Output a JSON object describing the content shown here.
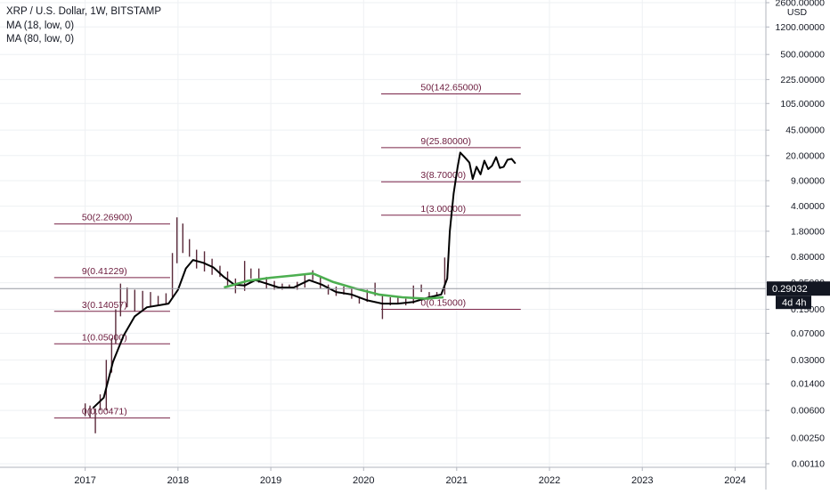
{
  "legend": {
    "symbol_line": "XRP / U.S. Dollar, 1W, BITSTAMP",
    "ma1": "MA (18, low, 0)",
    "ma2": "MA (80, low, 0)"
  },
  "axis": {
    "currency": "USD",
    "last_price": "0.29032",
    "countdown": "4d 4h"
  },
  "colors": {
    "background": "#ffffff",
    "grid": "#eef0f3",
    "fib_line": "#7a2448",
    "fib_text": "#6b1a3c",
    "candles": "#5a2a3a",
    "ma18": "#000000",
    "ma80": "#4caf50",
    "price_line": "#9598a1",
    "badge": "#131722"
  },
  "chart_data": {
    "type": "line",
    "y_scale": "log",
    "xlim": [
      "2016-02-01",
      "2024-05-01"
    ],
    "ylim": [
      0.0011,
      2600
    ],
    "x_ticks": [
      "2017",
      "2018",
      "2019",
      "2020",
      "2021",
      "2022",
      "2023",
      "2024"
    ],
    "y_ticks": [
      "2600.00000",
      "1200.00000",
      "500.00000",
      "225.00000",
      "105.00000",
      "45.00000",
      "20.00000",
      "9.00000",
      "4.00000",
      "1.80000",
      "0.80000",
      "0.35000",
      "0.15000",
      "0.07000",
      "0.03000",
      "0.01400",
      "0.00600",
      "0.00250",
      "0.00110"
    ],
    "fib_levels": [
      {
        "label": "0(0.00471)",
        "value": 0.00471,
        "x_start": "2016-09-01",
        "x_end": "2017-12-01"
      },
      {
        "label": "1(0.05000)",
        "value": 0.05,
        "x_start": "2016-09-01",
        "x_end": "2017-12-01"
      },
      {
        "label": "3(0.14057)",
        "value": 0.14057,
        "x_start": "2016-09-01",
        "x_end": "2017-12-01"
      },
      {
        "label": "9(0.41229)",
        "value": 0.41229,
        "x_start": "2016-09-01",
        "x_end": "2017-12-01"
      },
      {
        "label": "50(2.26900)",
        "value": 2.269,
        "x_start": "2016-09-01",
        "x_end": "2017-12-01"
      },
      {
        "label": "0(0.15000)",
        "value": 0.15,
        "x_start": "2020-03-10",
        "x_end": "2021-09-10"
      },
      {
        "label": "1(3.00000)",
        "value": 3.0,
        "x_start": "2020-03-10",
        "x_end": "2021-09-10"
      },
      {
        "label": "3(8.70000)",
        "value": 8.7,
        "x_start": "2020-03-10",
        "x_end": "2021-09-10"
      },
      {
        "label": "9(25.80000)",
        "value": 25.8,
        "x_start": "2020-03-10",
        "x_end": "2021-09-10"
      },
      {
        "label": "50(142.65000)",
        "value": 142.65,
        "x_start": "2020-03-10",
        "x_end": "2021-09-10"
      }
    ],
    "series": [
      {
        "name": "MA (18, low, 0)",
        "color": "#000000",
        "points": [
          [
            "2017-02-01",
            0.0065
          ],
          [
            "2017-03-15",
            0.009
          ],
          [
            "2017-04-20",
            0.028
          ],
          [
            "2017-06-01",
            0.065
          ],
          [
            "2017-07-15",
            0.12
          ],
          [
            "2017-09-01",
            0.16
          ],
          [
            "2017-10-15",
            0.17
          ],
          [
            "2017-11-25",
            0.18
          ],
          [
            "2018-01-01",
            0.28
          ],
          [
            "2018-02-01",
            0.55
          ],
          [
            "2018-03-01",
            0.72
          ],
          [
            "2018-04-10",
            0.66
          ],
          [
            "2018-05-20",
            0.57
          ],
          [
            "2018-07-01",
            0.42
          ],
          [
            "2018-08-10",
            0.33
          ],
          [
            "2018-09-20",
            0.32
          ],
          [
            "2018-11-01",
            0.38
          ],
          [
            "2018-12-15",
            0.34
          ],
          [
            "2019-02-01",
            0.3
          ],
          [
            "2019-04-01",
            0.3
          ],
          [
            "2019-06-01",
            0.38
          ],
          [
            "2019-07-20",
            0.33
          ],
          [
            "2019-09-15",
            0.26
          ],
          [
            "2019-11-15",
            0.24
          ],
          [
            "2020-01-15",
            0.2
          ],
          [
            "2020-03-15",
            0.18
          ],
          [
            "2020-05-15",
            0.18
          ],
          [
            "2020-07-15",
            0.19
          ],
          [
            "2020-09-15",
            0.22
          ],
          [
            "2020-11-01",
            0.24
          ],
          [
            "2020-11-25",
            0.4
          ],
          [
            "2020-12-05",
            1.8
          ],
          [
            "2020-12-20",
            6.0
          ],
          [
            "2021-01-05",
            14.0
          ],
          [
            "2021-01-15",
            22.0
          ],
          [
            "2021-02-01",
            19.0
          ],
          [
            "2021-02-20",
            16.0
          ],
          [
            "2021-03-05",
            9.5
          ],
          [
            "2021-03-20",
            14.0
          ],
          [
            "2021-04-05",
            11.0
          ],
          [
            "2021-04-20",
            17.0
          ],
          [
            "2021-05-05",
            13.0
          ],
          [
            "2021-05-20",
            14.5
          ],
          [
            "2021-06-05",
            19.0
          ],
          [
            "2021-06-20",
            13.5
          ],
          [
            "2021-07-05",
            14.0
          ],
          [
            "2021-07-20",
            17.5
          ],
          [
            "2021-08-05",
            18.0
          ],
          [
            "2021-08-20",
            15.5
          ]
        ]
      },
      {
        "name": "MA (80, low, 0)",
        "color": "#4caf50",
        "points": [
          [
            "2018-07-01",
            0.3
          ],
          [
            "2018-10-01",
            0.37
          ],
          [
            "2019-01-01",
            0.41
          ],
          [
            "2019-04-01",
            0.44
          ],
          [
            "2019-06-15",
            0.47
          ],
          [
            "2019-09-01",
            0.36
          ],
          [
            "2019-12-01",
            0.29
          ],
          [
            "2020-03-01",
            0.24
          ],
          [
            "2020-06-01",
            0.22
          ],
          [
            "2020-09-01",
            0.21
          ],
          [
            "2020-11-10",
            0.22
          ]
        ]
      }
    ],
    "candles": [
      [
        "2017-01-01",
        0.005,
        0.0075
      ],
      [
        "2017-01-20",
        0.0048,
        0.007
      ],
      [
        "2017-02-10",
        0.0029,
        0.0064
      ],
      [
        "2017-03-01",
        0.006,
        0.01
      ],
      [
        "2017-03-25",
        0.006,
        0.03
      ],
      [
        "2017-04-15",
        0.02,
        0.06
      ],
      [
        "2017-05-01",
        0.05,
        0.15
      ],
      [
        "2017-05-20",
        0.12,
        0.34
      ],
      [
        "2017-06-15",
        0.16,
        0.3
      ],
      [
        "2017-07-15",
        0.14,
        0.28
      ],
      [
        "2017-08-15",
        0.15,
        0.27
      ],
      [
        "2017-09-15",
        0.16,
        0.26
      ],
      [
        "2017-10-15",
        0.17,
        0.23
      ],
      [
        "2017-11-15",
        0.18,
        0.25
      ],
      [
        "2017-12-10",
        0.22,
        0.9
      ],
      [
        "2017-12-28",
        0.65,
        2.8
      ],
      [
        "2018-01-20",
        0.9,
        2.3
      ],
      [
        "2018-02-15",
        0.8,
        1.4
      ],
      [
        "2018-03-15",
        0.55,
        1.0
      ],
      [
        "2018-04-15",
        0.5,
        0.95
      ],
      [
        "2018-05-15",
        0.45,
        0.75
      ],
      [
        "2018-06-15",
        0.42,
        0.6
      ],
      [
        "2018-07-15",
        0.3,
        0.5
      ],
      [
        "2018-08-15",
        0.25,
        0.4
      ],
      [
        "2018-09-20",
        0.27,
        0.7
      ],
      [
        "2018-10-15",
        0.4,
        0.55
      ],
      [
        "2018-11-15",
        0.35,
        0.55
      ],
      [
        "2018-12-15",
        0.29,
        0.42
      ],
      [
        "2019-01-15",
        0.28,
        0.37
      ],
      [
        "2019-02-15",
        0.28,
        0.34
      ],
      [
        "2019-03-15",
        0.29,
        0.33
      ],
      [
        "2019-04-15",
        0.28,
        0.36
      ],
      [
        "2019-05-15",
        0.3,
        0.47
      ],
      [
        "2019-06-15",
        0.38,
        0.52
      ],
      [
        "2019-07-15",
        0.29,
        0.44
      ],
      [
        "2019-08-15",
        0.24,
        0.33
      ],
      [
        "2019-09-15",
        0.23,
        0.31
      ],
      [
        "2019-10-15",
        0.24,
        0.31
      ],
      [
        "2019-11-15",
        0.21,
        0.3
      ],
      [
        "2019-12-15",
        0.18,
        0.22
      ],
      [
        "2020-01-15",
        0.19,
        0.28
      ],
      [
        "2020-02-15",
        0.23,
        0.35
      ],
      [
        "2020-03-15",
        0.11,
        0.24
      ],
      [
        "2020-04-15",
        0.17,
        0.22
      ],
      [
        "2020-05-15",
        0.18,
        0.22
      ],
      [
        "2020-06-15",
        0.17,
        0.21
      ],
      [
        "2020-07-15",
        0.18,
        0.32
      ],
      [
        "2020-08-15",
        0.26,
        0.33
      ],
      [
        "2020-09-15",
        0.22,
        0.26
      ],
      [
        "2020-10-15",
        0.23,
        0.26
      ],
      [
        "2020-11-15",
        0.24,
        0.78
      ]
    ]
  }
}
